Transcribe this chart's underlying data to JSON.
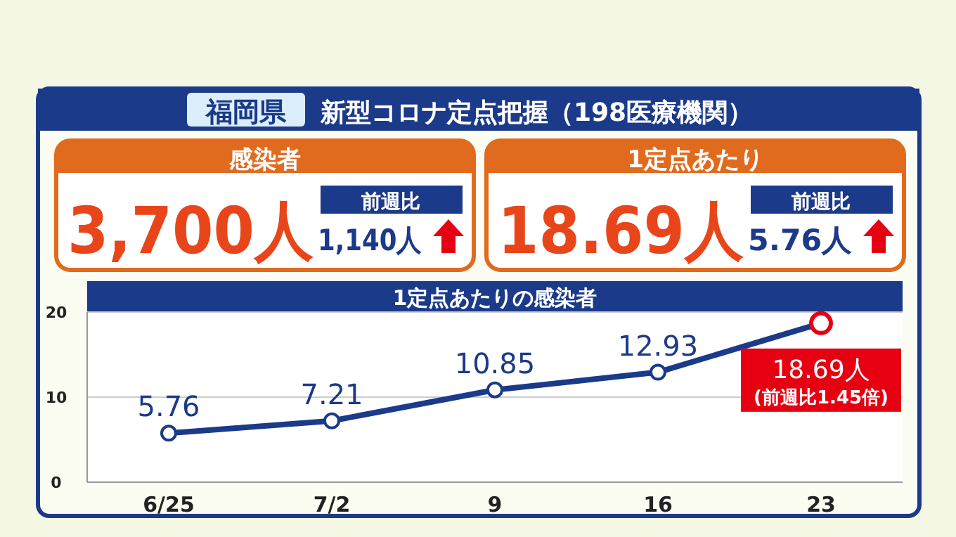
{
  "chart_data": [
    {
      "type": "other",
      "title": "福岡県",
      "subtitle": "新型コロナ定点把握（198医療機関）",
      "annotations": [
        "感染者",
        "3,700人",
        "前週比",
        "1,140人",
        "1定点あたり",
        "18.69人",
        "前週比",
        "5.76人"
      ]
    },
    {
      "type": "line",
      "title": "1定点あたりの感染者",
      "categories": [
        "6/25",
        "7/2",
        "9",
        "16",
        "23"
      ],
      "values": [
        5.76,
        7.21,
        10.85,
        12.93,
        18.69
      ],
      "color": "#1b3a8a",
      "colors": [
        "#1b3a8a",
        "#1b3a8a",
        "#1b3a8a",
        "#1b3a8a",
        "#e60012"
      ],
      "marker": "circle",
      "ylim": [
        0,
        20
      ],
      "yticks": [
        0,
        10,
        20
      ],
      "grid": "y",
      "value_labels": [
        "5.76",
        "7.21",
        "10.85",
        "12.93",
        "18.69人"
      ],
      "annotations": [
        "(前週比1.45倍)"
      ]
    }
  ]
}
